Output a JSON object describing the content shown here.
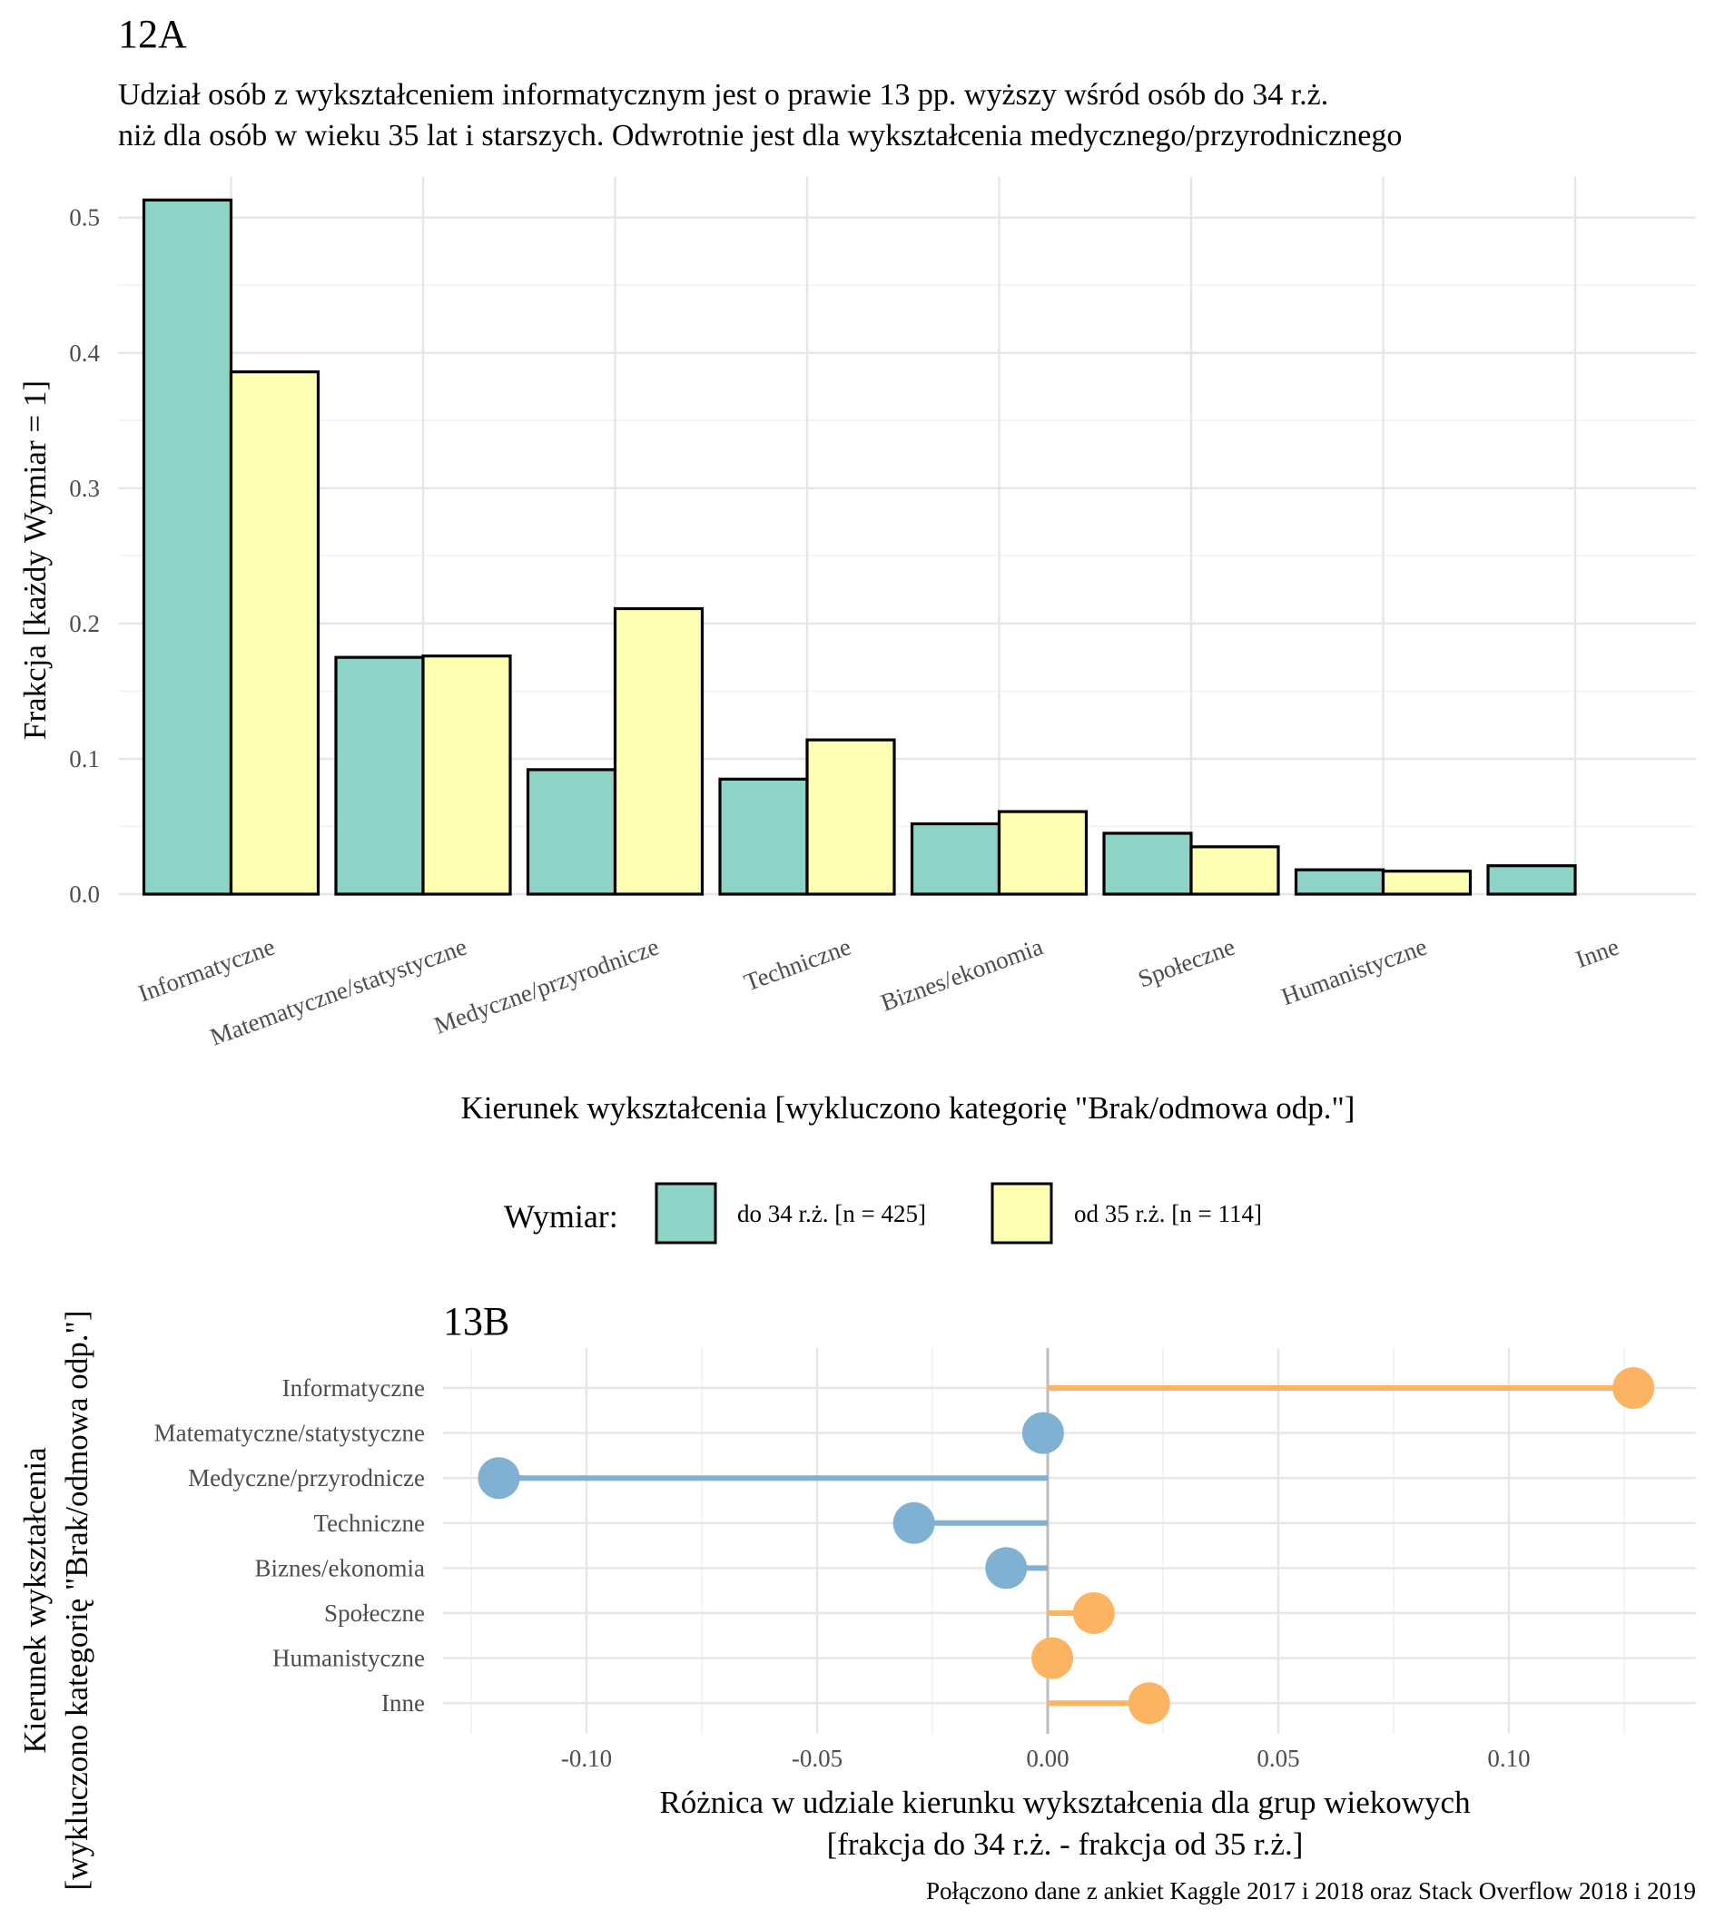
{
  "chart_data": [
    {
      "type": "bar",
      "panel_tag": "12A",
      "subtitle": [
        "Udział osób z wykształceniem informatycznym jest o prawie 13 pp. wyższy wśród osób do 34 r.ż.",
        "niż dla osób w wieku 35 lat i starszych. Odwrotnie jest dla wykształcenia medycznego/przyrodnicznego"
      ],
      "categories": [
        "Informatyczne",
        "Matematyczne/statystyczne",
        "Medyczne/przyrodnicze",
        "Techniczne",
        "Biznes/ekonomia",
        "Społeczne",
        "Humanistyczne",
        "Inne"
      ],
      "series": [
        {
          "name": "do 34 r.ż. [n = 425]",
          "color": "#8dd3c7",
          "values": [
            0.513,
            0.175,
            0.092,
            0.085,
            0.052,
            0.045,
            0.018,
            0.021
          ]
        },
        {
          "name": "od 35 r.ż. [n = 114]",
          "color": "#ffffb3",
          "values": [
            0.386,
            0.176,
            0.211,
            0.114,
            0.061,
            0.035,
            0.017,
            0.0
          ]
        }
      ],
      "xlabel": "Kierunek wykształcenia [wykluczono kategorię \"Brak/odmowa odp.\"]",
      "ylabel": "Frakcja [każdy Wymiar = 1]",
      "ylim": [
        0,
        0.53
      ],
      "yticks": [
        "0.0",
        "0.1",
        "0.2",
        "0.3",
        "0.4",
        "0.5"
      ],
      "ytick_values": [
        0,
        0.1,
        0.2,
        0.3,
        0.4,
        0.5
      ],
      "grid": true,
      "legend": {
        "title": "Wymiar:",
        "placement": "bottom"
      }
    },
    {
      "type": "lollipop",
      "panel_tag": "13B",
      "categories": [
        "Informatyczne",
        "Matematyczne/statystyczne",
        "Medyczne/przyrodnicze",
        "Techniczne",
        "Biznes/ekonomia",
        "Społeczne",
        "Humanistyczne",
        "Inne"
      ],
      "values": [
        0.127,
        -0.001,
        -0.119,
        -0.029,
        -0.009,
        0.01,
        0.001,
        0.022
      ],
      "positive_color": "#fdb462",
      "negative_color": "#80b1d3",
      "xlabel": [
        "Różnica w udziale kierunku wykształcenia dla grup wiekowych",
        "[frakcja do 34 r.ż. - frakcja od 35 r.ż.]"
      ],
      "ylabel": [
        "Kierunek wykształcenia",
        "[wykluczono kategorię \"Brak/odmowa odp.\"]"
      ],
      "xlim": [
        -0.125,
        0.14
      ],
      "xticks": [
        "-0.10",
        "-0.05",
        "0.00",
        "0.05",
        "0.10"
      ],
      "xtick_values": [
        -0.1,
        -0.05,
        0.0,
        0.05,
        0.1
      ],
      "grid": true
    }
  ],
  "caption": "Połączono dane z ankiet Kaggle 2017 i 2018 oraz Stack Overflow 2018 i 2019"
}
